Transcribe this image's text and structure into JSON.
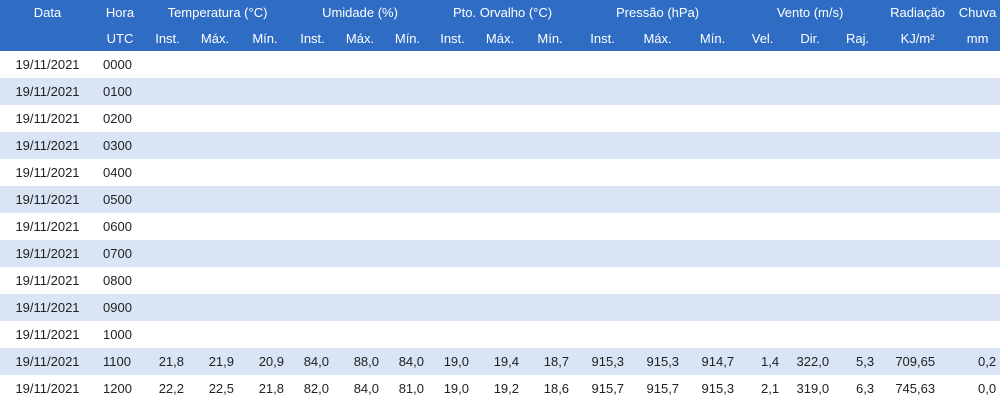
{
  "header": {
    "groups": [
      "Data",
      "Hora",
      "Temperatura (°C)",
      "Umidade (%)",
      "Pto. Orvalho (°C)",
      "Pressão (hPa)",
      "Vento (m/s)",
      "Radiação",
      "Chuva"
    ],
    "sub": [
      "",
      "UTC",
      "Inst.",
      "Máx.",
      "Mín.",
      "Inst.",
      "Máx.",
      "Mín.",
      "Inst.",
      "Máx.",
      "Mín.",
      "Inst.",
      "Máx.",
      "Mín.",
      "Vel.",
      "Dir.",
      "Raj.",
      "KJ/m²",
      "mm"
    ]
  },
  "rows": [
    [
      "19/11/2021",
      "0000",
      "",
      "",
      "",
      "",
      "",
      "",
      "",
      "",
      "",
      "",
      "",
      "",
      "",
      "",
      "",
      "",
      ""
    ],
    [
      "19/11/2021",
      "0100",
      "",
      "",
      "",
      "",
      "",
      "",
      "",
      "",
      "",
      "",
      "",
      "",
      "",
      "",
      "",
      "",
      ""
    ],
    [
      "19/11/2021",
      "0200",
      "",
      "",
      "",
      "",
      "",
      "",
      "",
      "",
      "",
      "",
      "",
      "",
      "",
      "",
      "",
      "",
      ""
    ],
    [
      "19/11/2021",
      "0300",
      "",
      "",
      "",
      "",
      "",
      "",
      "",
      "",
      "",
      "",
      "",
      "",
      "",
      "",
      "",
      "",
      ""
    ],
    [
      "19/11/2021",
      "0400",
      "",
      "",
      "",
      "",
      "",
      "",
      "",
      "",
      "",
      "",
      "",
      "",
      "",
      "",
      "",
      "",
      ""
    ],
    [
      "19/11/2021",
      "0500",
      "",
      "",
      "",
      "",
      "",
      "",
      "",
      "",
      "",
      "",
      "",
      "",
      "",
      "",
      "",
      "",
      ""
    ],
    [
      "19/11/2021",
      "0600",
      "",
      "",
      "",
      "",
      "",
      "",
      "",
      "",
      "",
      "",
      "",
      "",
      "",
      "",
      "",
      "",
      ""
    ],
    [
      "19/11/2021",
      "0700",
      "",
      "",
      "",
      "",
      "",
      "",
      "",
      "",
      "",
      "",
      "",
      "",
      "",
      "",
      "",
      "",
      ""
    ],
    [
      "19/11/2021",
      "0800",
      "",
      "",
      "",
      "",
      "",
      "",
      "",
      "",
      "",
      "",
      "",
      "",
      "",
      "",
      "",
      "",
      ""
    ],
    [
      "19/11/2021",
      "0900",
      "",
      "",
      "",
      "",
      "",
      "",
      "",
      "",
      "",
      "",
      "",
      "",
      "",
      "",
      "",
      "",
      ""
    ],
    [
      "19/11/2021",
      "1000",
      "",
      "",
      "",
      "",
      "",
      "",
      "",
      "",
      "",
      "",
      "",
      "",
      "",
      "",
      "",
      "",
      ""
    ],
    [
      "19/11/2021",
      "1100",
      "21,8",
      "21,9",
      "20,9",
      "84,0",
      "88,0",
      "84,0",
      "19,0",
      "19,4",
      "18,7",
      "915,3",
      "915,3",
      "914,7",
      "1,4",
      "322,0",
      "5,3",
      "709,65",
      "0,2"
    ],
    [
      "19/11/2021",
      "1200",
      "22,2",
      "22,5",
      "21,8",
      "82,0",
      "84,0",
      "81,0",
      "19,0",
      "19,2",
      "18,6",
      "915,7",
      "915,7",
      "915,3",
      "2,1",
      "319,0",
      "6,3",
      "745,63",
      "0,0"
    ]
  ],
  "colors": {
    "header_bg": "#2f6dc4",
    "stripe": "#d9e4f4"
  }
}
